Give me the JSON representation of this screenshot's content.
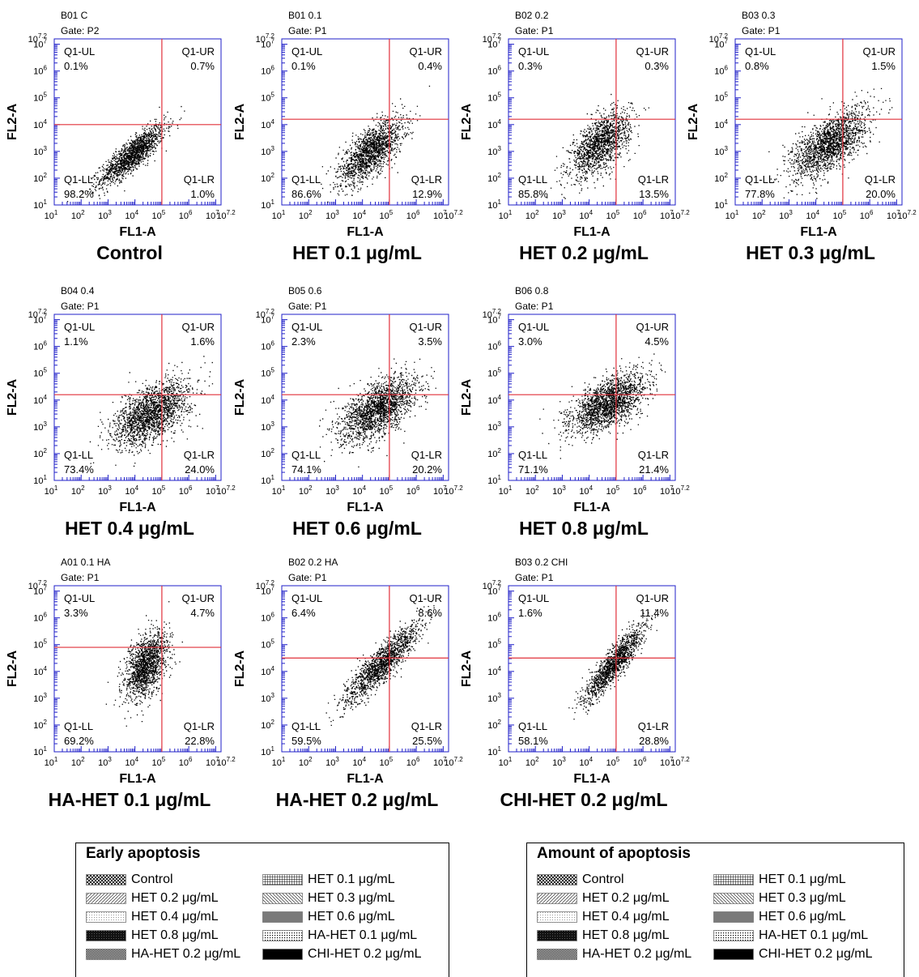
{
  "colors": {
    "axis": "#1f1fc8",
    "gate_line": "#e0303a",
    "dots": "#000000"
  },
  "chart_data": [
    {
      "type": "scatter",
      "header": "B01 C",
      "gate": "Gate: P2",
      "title": "Control",
      "xlabel": "FL1-A",
      "ylabel": "FL2-A",
      "xlim": [
        1,
        7.2
      ],
      "ylim": [
        1,
        7.2
      ],
      "log_scale": true,
      "gate_x": 5.0,
      "gate_y": 4.0,
      "quadrants": {
        "UL": {
          "label": "Q1-UL",
          "value": "0.1%"
        },
        "UR": {
          "label": "Q1-UR",
          "value": "0.7%"
        },
        "LL": {
          "label": "Q1-LL",
          "value": "98.2%"
        },
        "LR": {
          "label": "Q1-LR",
          "value": "1.0%"
        }
      },
      "cloud": {
        "cx": 3.9,
        "cy": 2.9,
        "sx": 0.6,
        "sy": 0.55,
        "rho": 0.85,
        "n": 1500
      }
    },
    {
      "type": "scatter",
      "header": "B01 0.1",
      "gate": "Gate: P1",
      "title": "HET 0.1 μg/mL",
      "xlabel": "FL1-A",
      "ylabel": "FL2-A",
      "xlim": [
        1,
        7.2
      ],
      "ylim": [
        1,
        7.2
      ],
      "log_scale": true,
      "gate_x": 5.0,
      "gate_y": 4.2,
      "quadrants": {
        "UL": {
          "label": "Q1-UL",
          "value": "0.1%"
        },
        "UR": {
          "label": "Q1-UR",
          "value": "0.4%"
        },
        "LL": {
          "label": "Q1-LL",
          "value": "86.6%"
        },
        "LR": {
          "label": "Q1-LR",
          "value": "12.9%"
        }
      },
      "cloud": {
        "cx": 4.3,
        "cy": 3.0,
        "sx": 0.6,
        "sy": 0.6,
        "rho": 0.7,
        "n": 1600
      }
    },
    {
      "type": "scatter",
      "header": "B02 0.2",
      "gate": "Gate: P1",
      "title": "HET 0.2 μg/mL",
      "xlabel": "FL1-A",
      "ylabel": "FL2-A",
      "xlim": [
        1,
        7.2
      ],
      "ylim": [
        1,
        7.2
      ],
      "log_scale": true,
      "gate_x": 5.0,
      "gate_y": 4.2,
      "quadrants": {
        "UL": {
          "label": "Q1-UL",
          "value": "0.3%"
        },
        "UR": {
          "label": "Q1-UR",
          "value": "0.3%"
        },
        "LL": {
          "label": "Q1-LL",
          "value": "85.8%"
        },
        "LR": {
          "label": "Q1-LR",
          "value": "13.5%"
        }
      },
      "cloud": {
        "cx": 4.4,
        "cy": 3.3,
        "sx": 0.55,
        "sy": 0.6,
        "rho": 0.6,
        "n": 1500
      }
    },
    {
      "type": "scatter",
      "header": "B03 0.3",
      "gate": "Gate: P1",
      "title": "HET 0.3 μg/mL",
      "xlabel": "FL1-A",
      "ylabel": "FL2-A",
      "xlim": [
        1,
        7.2
      ],
      "ylim": [
        1,
        7.2
      ],
      "log_scale": true,
      "gate_x": 5.0,
      "gate_y": 4.2,
      "quadrants": {
        "UL": {
          "label": "Q1-UL",
          "value": "0.8%"
        },
        "UR": {
          "label": "Q1-UR",
          "value": "1.5%"
        },
        "LL": {
          "label": "Q1-LL",
          "value": "77.8%"
        },
        "LR": {
          "label": "Q1-LR",
          "value": "20.0%"
        }
      },
      "cloud": {
        "cx": 4.5,
        "cy": 3.3,
        "sx": 0.7,
        "sy": 0.65,
        "rho": 0.65,
        "n": 1800
      }
    },
    {
      "type": "scatter",
      "header": "B04 0.4",
      "gate": "Gate: P1",
      "title": "HET 0.4 μg/mL",
      "xlabel": "FL1-A",
      "ylabel": "FL2-A",
      "xlim": [
        1,
        7.2
      ],
      "ylim": [
        1,
        7.2
      ],
      "log_scale": true,
      "gate_x": 5.0,
      "gate_y": 4.2,
      "quadrants": {
        "UL": {
          "label": "Q1-UL",
          "value": "1.1%"
        },
        "UR": {
          "label": "Q1-UR",
          "value": "1.6%"
        },
        "LL": {
          "label": "Q1-LL",
          "value": "73.4%"
        },
        "LR": {
          "label": "Q1-LR",
          "value": "24.0%"
        }
      },
      "cloud": {
        "cx": 4.6,
        "cy": 3.5,
        "sx": 0.7,
        "sy": 0.6,
        "rho": 0.55,
        "n": 1900
      }
    },
    {
      "type": "scatter",
      "header": "B05 0.6",
      "gate": "Gate: P1",
      "title": "HET 0.6 μg/mL",
      "xlabel": "FL1-A",
      "ylabel": "FL2-A",
      "xlim": [
        1,
        7.2
      ],
      "ylim": [
        1,
        7.2
      ],
      "log_scale": true,
      "gate_x": 5.0,
      "gate_y": 4.2,
      "quadrants": {
        "UL": {
          "label": "Q1-UL",
          "value": "2.3%"
        },
        "UR": {
          "label": "Q1-UR",
          "value": "3.5%"
        },
        "LL": {
          "label": "Q1-LL",
          "value": "74.1%"
        },
        "LR": {
          "label": "Q1-LR",
          "value": "20.2%"
        }
      },
      "cloud": {
        "cx": 4.6,
        "cy": 3.7,
        "sx": 0.7,
        "sy": 0.6,
        "rho": 0.6,
        "n": 1900
      }
    },
    {
      "type": "scatter",
      "header": "B06 0.8",
      "gate": "Gate: P1",
      "title": "HET 0.8 μg/mL",
      "xlabel": "FL1-A",
      "ylabel": "FL2-A",
      "xlim": [
        1,
        7.2
      ],
      "ylim": [
        1,
        7.2
      ],
      "log_scale": true,
      "gate_x": 5.0,
      "gate_y": 4.2,
      "quadrants": {
        "UL": {
          "label": "Q1-UL",
          "value": "3.0%"
        },
        "UR": {
          "label": "Q1-UR",
          "value": "4.5%"
        },
        "LL": {
          "label": "Q1-LL",
          "value": "71.1%"
        },
        "LR": {
          "label": "Q1-LR",
          "value": "21.4%"
        }
      },
      "cloud": {
        "cx": 4.7,
        "cy": 3.9,
        "sx": 0.7,
        "sy": 0.55,
        "rho": 0.6,
        "n": 1900
      }
    },
    {
      "type": "scatter",
      "header": "A01 0.1 HA",
      "gate": "Gate: P1",
      "title": "HA-HET 0.1 μg/mL",
      "xlabel": "FL1-A",
      "ylabel": "FL2-A",
      "xlim": [
        1,
        7.2
      ],
      "ylim": [
        1,
        7.2
      ],
      "log_scale": true,
      "gate_x": 5.0,
      "gate_y": 4.9,
      "quadrants": {
        "UL": {
          "label": "Q1-UL",
          "value": "3.3%"
        },
        "UR": {
          "label": "Q1-UR",
          "value": "4.7%"
        },
        "LL": {
          "label": "Q1-LL",
          "value": "69.2%"
        },
        "LR": {
          "label": "Q1-LR",
          "value": "22.8%"
        }
      },
      "cloud": {
        "cx": 4.4,
        "cy": 4.2,
        "sx": 0.4,
        "sy": 0.65,
        "rho": 0.5,
        "n": 1500
      }
    },
    {
      "type": "scatter",
      "header": "B02 0.2 HA",
      "gate": "Gate: P1",
      "title": "HA-HET 0.2 μg/mL",
      "xlabel": "FL1-A",
      "ylabel": "FL2-A",
      "xlim": [
        1,
        7.2
      ],
      "ylim": [
        1,
        7.2
      ],
      "log_scale": true,
      "gate_x": 5.0,
      "gate_y": 4.5,
      "quadrants": {
        "UL": {
          "label": "Q1-UL",
          "value": "6.4%"
        },
        "UR": {
          "label": "Q1-UR",
          "value": "8.6%"
        },
        "LL": {
          "label": "Q1-LL",
          "value": "59.5%"
        },
        "LR": {
          "label": "Q1-LR",
          "value": "25.5%"
        }
      },
      "cloud": {
        "cx": 4.7,
        "cy": 4.3,
        "sx": 0.7,
        "sy": 0.75,
        "rho": 0.9,
        "n": 1500
      }
    },
    {
      "type": "scatter",
      "header": "B03 0.2 CHI",
      "gate": "Gate: P1",
      "title": "CHI-HET 0.2 μg/mL",
      "xlabel": "FL1-A",
      "ylabel": "FL2-A",
      "xlim": [
        1,
        7.2
      ],
      "ylim": [
        1,
        7.2
      ],
      "log_scale": true,
      "gate_x": 5.0,
      "gate_y": 4.5,
      "quadrants": {
        "UL": {
          "label": "Q1-UL",
          "value": "1.6%"
        },
        "UR": {
          "label": "Q1-UR",
          "value": "11.4%"
        },
        "LL": {
          "label": "Q1-LL",
          "value": "58.1%"
        },
        "LR": {
          "label": "Q1-LR",
          "value": "28.8%"
        }
      },
      "cloud": {
        "cx": 4.9,
        "cy": 4.3,
        "sx": 0.55,
        "sy": 0.7,
        "rho": 0.9,
        "n": 1400
      }
    }
  ],
  "legends": [
    {
      "title": "Early apoptosis",
      "items": [
        {
          "label": "Control",
          "pattern": "crosshatch"
        },
        {
          "label": "HET 0.1 μg/mL",
          "pattern": "grid"
        },
        {
          "label": "HET 0.2 μg/mL",
          "pattern": "diag-right"
        },
        {
          "label": "HET 0.3 μg/mL",
          "pattern": "diag-left"
        },
        {
          "label": "HET 0.4 μg/mL",
          "pattern": "light-dots"
        },
        {
          "label": "HET 0.6 μg/mL",
          "pattern": "gray"
        },
        {
          "label": "HET 0.8 μg/mL",
          "pattern": "dense-black"
        },
        {
          "label": "HA-HET 0.1 μg/mL",
          "pattern": "dots"
        },
        {
          "label": "HA-HET 0.2 μg/mL",
          "pattern": "checker"
        },
        {
          "label": "CHI-HET 0.2 μg/mL",
          "pattern": "black"
        }
      ]
    },
    {
      "title": "Amount of apoptosis",
      "items": [
        {
          "label": "Control",
          "pattern": "crosshatch"
        },
        {
          "label": "HET 0.1 μg/mL",
          "pattern": "grid"
        },
        {
          "label": "HET 0.2 μg/mL",
          "pattern": "diag-right"
        },
        {
          "label": "HET 0.3 μg/mL",
          "pattern": "diag-left"
        },
        {
          "label": "HET 0.4 μg/mL",
          "pattern": "light-dots"
        },
        {
          "label": "HET 0.6 μg/mL",
          "pattern": "gray"
        },
        {
          "label": "HET 0.8 μg/mL",
          "pattern": "dense-black"
        },
        {
          "label": "HA-HET 0.1 μg/mL",
          "pattern": "dots"
        },
        {
          "label": "HA-HET 0.2 μg/mL",
          "pattern": "checker"
        },
        {
          "label": "CHI-HET 0.2 μg/mL",
          "pattern": "black"
        }
      ]
    }
  ]
}
